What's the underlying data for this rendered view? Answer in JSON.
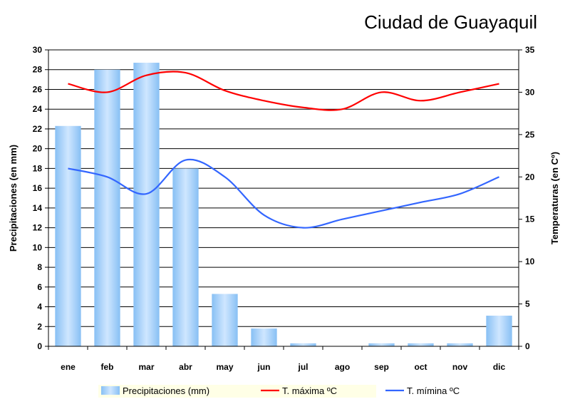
{
  "chart_data": {
    "type": "bar",
    "title": "Ciudad de Guayaquil",
    "categories": [
      "ene",
      "feb",
      "mar",
      "abr",
      "may",
      "jun",
      "jul",
      "ago",
      "sep",
      "oct",
      "nov",
      "dic"
    ],
    "y_left": {
      "label": "Precipitaciones (en mm)",
      "range": [
        0,
        30
      ],
      "ticks": [
        0,
        2,
        4,
        6,
        8,
        10,
        12,
        14,
        16,
        18,
        20,
        22,
        24,
        26,
        28,
        30
      ]
    },
    "y_right": {
      "label": "Temperaturas (en Cº)",
      "range": [
        0,
        35
      ],
      "ticks": [
        0,
        5,
        10,
        15,
        20,
        25,
        30,
        35
      ]
    },
    "series": [
      {
        "name": "Precipitaciones (mm)",
        "type": "bar",
        "axis": "left",
        "color": "#99ccff",
        "values": [
          22.3,
          28.0,
          28.7,
          18.0,
          5.3,
          1.8,
          0.3,
          0.0,
          0.3,
          0.3,
          0.3,
          3.1
        ]
      },
      {
        "name": "T. máxima ºC",
        "type": "line",
        "axis": "right",
        "color": "#ff0000",
        "values": [
          31.0,
          30.0,
          32.0,
          32.3,
          30.2,
          29.0,
          28.2,
          28.0,
          30.0,
          29.0,
          30.0,
          31.0
        ]
      },
      {
        "name": "T. mímina ºC",
        "type": "line",
        "axis": "right",
        "color": "#3366ff",
        "values": [
          21.0,
          20.0,
          18.0,
          22.0,
          20.0,
          15.5,
          14.0,
          15.0,
          16.0,
          17.0,
          18.0,
          20.0
        ]
      }
    ],
    "grid": true,
    "legend": "bottom"
  }
}
